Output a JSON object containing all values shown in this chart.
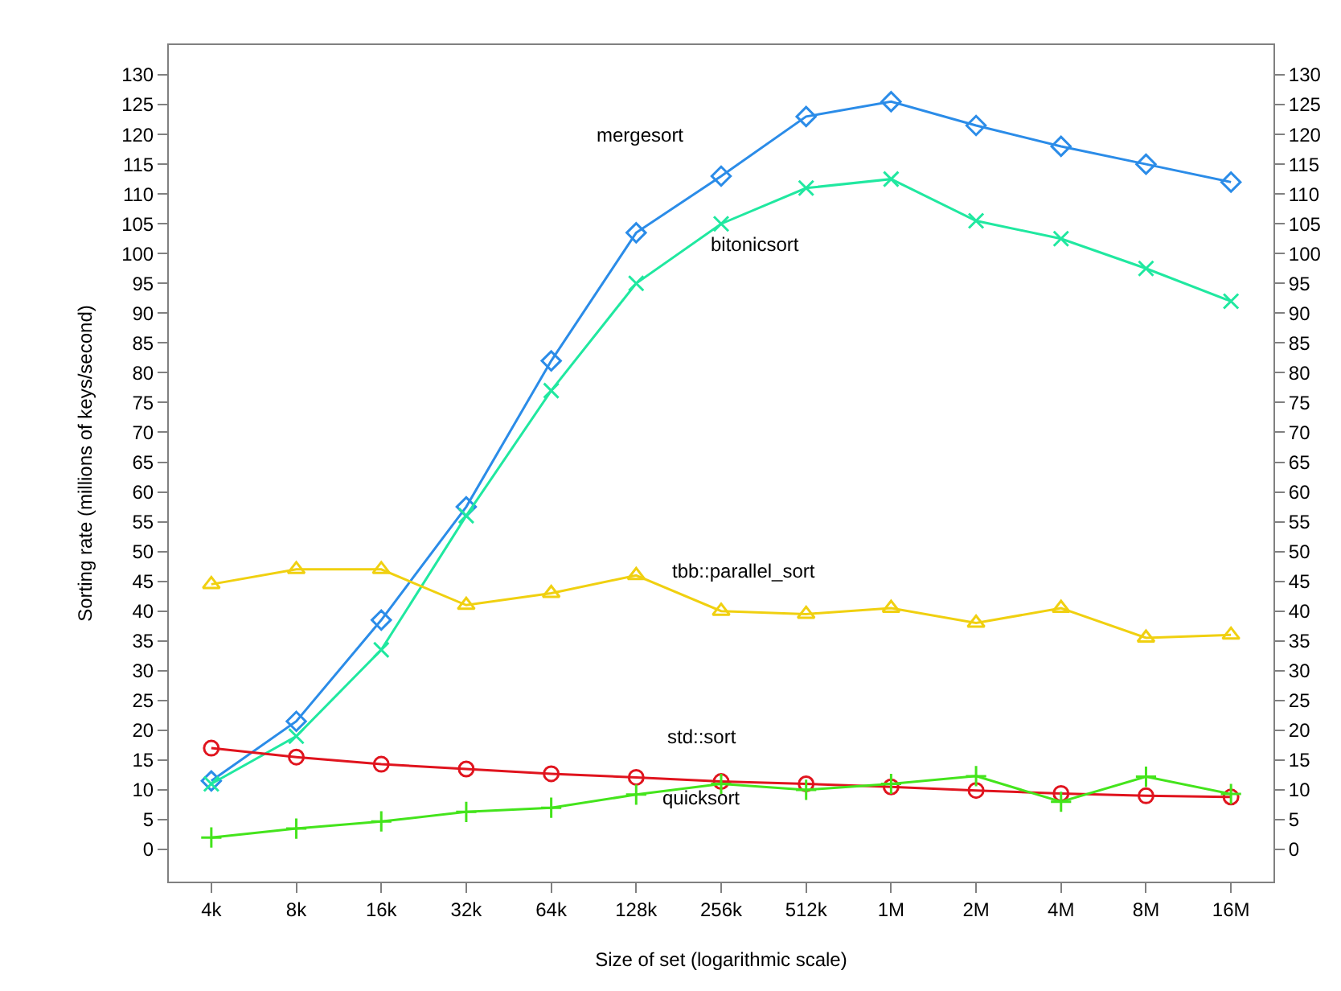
{
  "chart_data": {
    "type": "line",
    "xlabel": "Size of set (logarithmic scale)",
    "ylabel": "Sorting rate (millions of keys/second)",
    "categories": [
      "4k",
      "8k",
      "16k",
      "32k",
      "64k",
      "128k",
      "256k",
      "512k",
      "1M",
      "2M",
      "4M",
      "8M",
      "16M"
    ],
    "series": [
      {
        "name": "mergesort",
        "color": "#2b8ce8",
        "marker": "diamond",
        "values": [
          11.5,
          21.5,
          38.5,
          57.5,
          82,
          103.5,
          113,
          123,
          125.5,
          121.5,
          118,
          115,
          112
        ]
      },
      {
        "name": "bitonicsort",
        "color": "#20e8a0",
        "marker": "cross",
        "values": [
          11,
          19,
          33.5,
          56,
          77,
          95,
          105,
          111,
          112.5,
          105.5,
          102.5,
          97.5,
          92
        ]
      },
      {
        "name": "tbb::parallel_sort",
        "color": "#f0d010",
        "marker": "triangle",
        "values": [
          44.5,
          47,
          47,
          41,
          43,
          46,
          40,
          39.5,
          40.5,
          38,
          40.5,
          35.5,
          36
        ]
      },
      {
        "name": "std::sort",
        "color": "#e0141e",
        "marker": "circle",
        "values": [
          17,
          15.5,
          14.3,
          13.5,
          12.7,
          12.1,
          11.4,
          11,
          10.5,
          9.9,
          9.4,
          9,
          8.8
        ]
      },
      {
        "name": "quicksort",
        "color": "#44e41c",
        "marker": "plus",
        "values": [
          2,
          3.5,
          4.7,
          6.3,
          7,
          9.2,
          11,
          10,
          11,
          12.3,
          8,
          12.2,
          9.3
        ]
      }
    ],
    "ylim": [
      -5.4,
      135
    ],
    "yticks": [
      0,
      5,
      10,
      15,
      20,
      25,
      30,
      35,
      40,
      45,
      50,
      55,
      60,
      65,
      70,
      75,
      80,
      85,
      90,
      95,
      100,
      105,
      110,
      115,
      120,
      125,
      130
    ],
    "y2lim": [
      -5.4,
      135
    ],
    "y2ticks": [
      0,
      5,
      10,
      15,
      20,
      25,
      30,
      35,
      40,
      45,
      50,
      55,
      60,
      65,
      70,
      75,
      80,
      85,
      90,
      95,
      100,
      105,
      110,
      115,
      120,
      125,
      130
    ],
    "legend": false
  }
}
